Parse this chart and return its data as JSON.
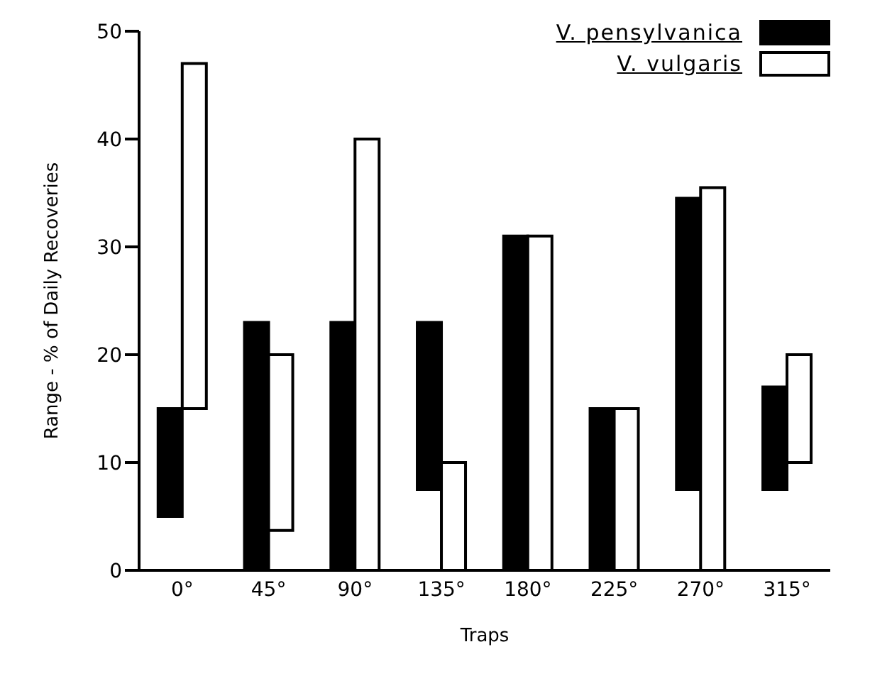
{
  "chart_data": {
    "type": "bar",
    "xlabel": "Traps",
    "ylabel": "Range - % of Daily Recoveries",
    "categories": [
      "0°",
      "45°",
      "90°",
      "135°",
      "180°",
      "225°",
      "270°",
      "315°"
    ],
    "series": [
      {
        "name": "V. pensylvanica",
        "color": "#000000",
        "base": [
          5,
          0,
          0,
          7.5,
          0,
          0,
          7.5,
          7.5
        ],
        "values": [
          10,
          23,
          23,
          15.5,
          31,
          15,
          27,
          9.5
        ]
      },
      {
        "name": "V. vulgaris",
        "color": "#ffffff",
        "base": [
          15,
          3.7,
          0,
          0,
          0,
          0,
          0,
          10
        ],
        "values": [
          32,
          16.3,
          40,
          10,
          31,
          15,
          35.5,
          10
        ]
      }
    ],
    "ylim": [
      0,
      50
    ],
    "yticks": [
      0,
      10,
      20,
      30,
      40,
      50
    ],
    "grid": false,
    "legend": "top right"
  }
}
